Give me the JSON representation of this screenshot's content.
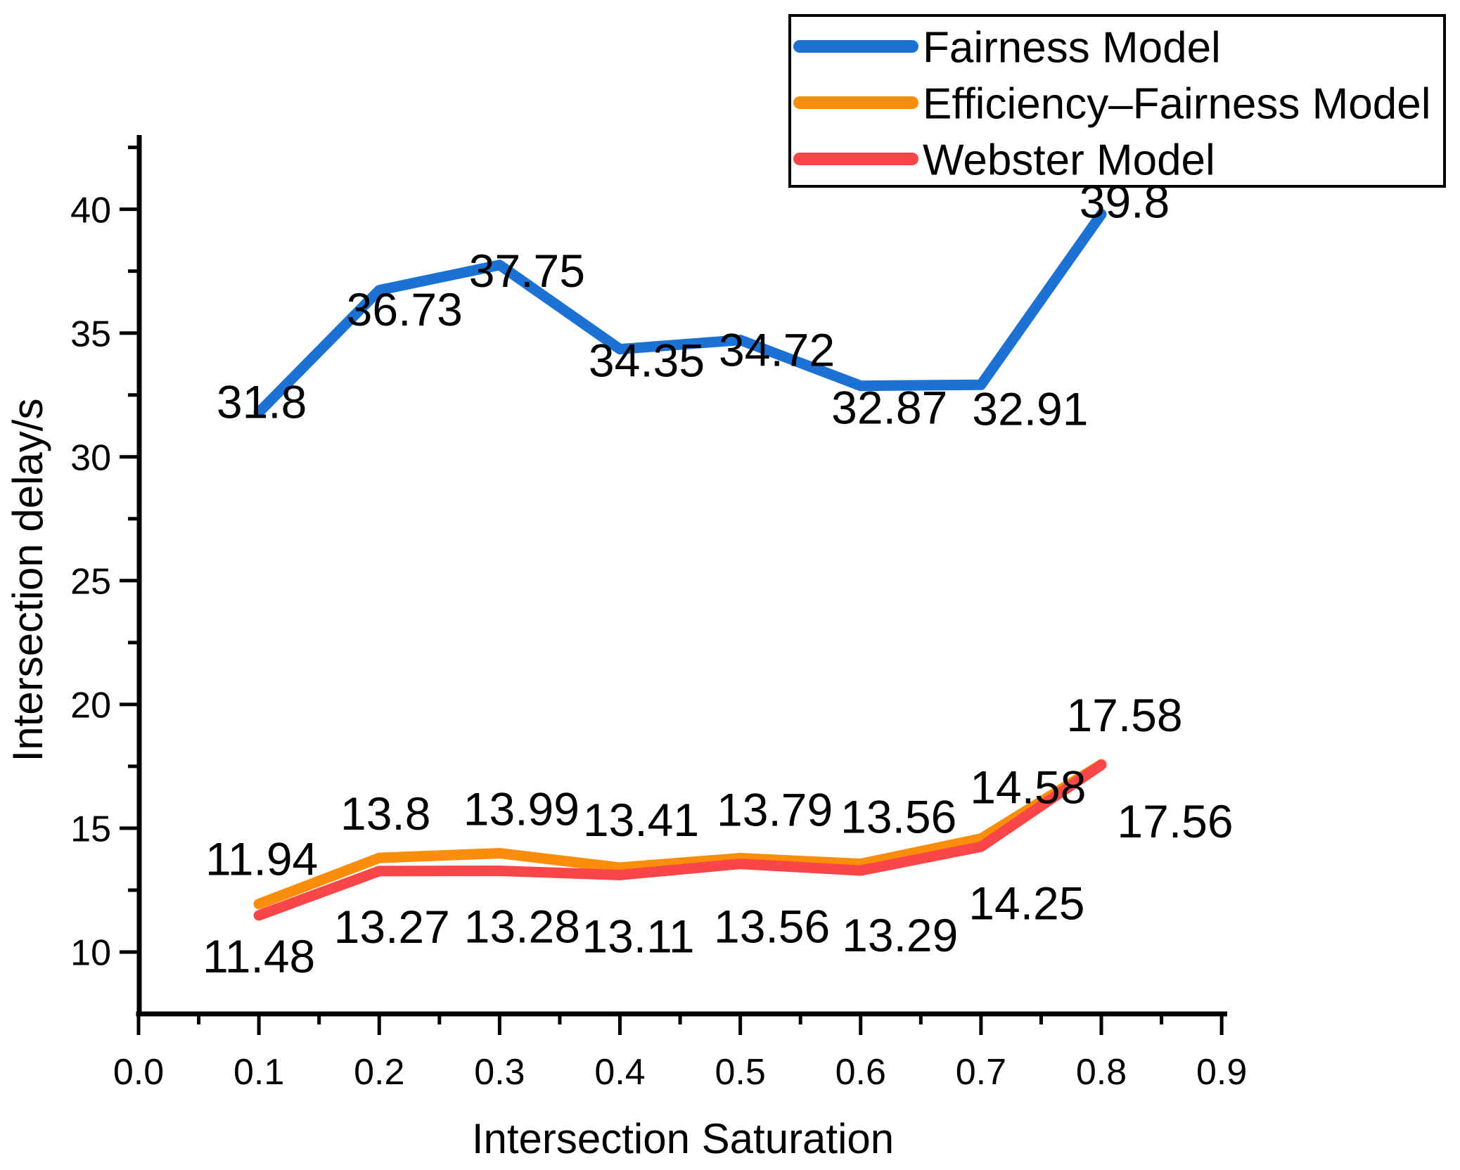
{
  "chart_data": {
    "type": "line",
    "x": [
      0.1,
      0.2,
      0.3,
      0.4,
      0.5,
      0.6,
      0.7,
      0.8
    ],
    "series": [
      {
        "name": "Fairness Model",
        "color": "#1C72D4",
        "values": [
          31.8,
          36.73,
          37.75,
          34.35,
          34.72,
          32.87,
          32.91,
          39.8
        ],
        "point_labels": [
          {
            "text": "31.8",
            "dx": 4,
            "dy": 8
          },
          {
            "text": "36.73",
            "dx": 36,
            "dy": 50
          },
          {
            "text": "37.75",
            "dx": 39,
            "dy": 31
          },
          {
            "text": "34.35",
            "dx": 38,
            "dy": 39
          },
          {
            "text": "34.72",
            "dx": 52,
            "dy": 37
          },
          {
            "text": "32.87",
            "dx": 41,
            "dy": 54
          },
          {
            "text": "32.91",
            "dx": 70,
            "dy": 57
          },
          {
            "text": "39.8",
            "dx": 33,
            "dy": 5
          }
        ]
      },
      {
        "name": "Efficiency–Fairness Model",
        "color": "#FA8E0A",
        "values": [
          11.94,
          13.8,
          13.99,
          13.41,
          13.79,
          13.56,
          14.58,
          17.58
        ],
        "point_labels": [
          {
            "text": "11.94",
            "dx": 4,
            "dy": -41
          },
          {
            "text": "13.8",
            "dx": 9,
            "dy": -40
          },
          {
            "text": "13.99",
            "dx": 31,
            "dy": -40
          },
          {
            "text": "13.41",
            "dx": 30,
            "dy": -45
          },
          {
            "text": "13.79",
            "dx": 49,
            "dy": -46
          },
          {
            "text": "13.56",
            "dx": 54,
            "dy": -44
          },
          {
            "text": "14.58",
            "dx": 67,
            "dy": -50
          },
          {
            "text": "17.58",
            "dx": 33,
            "dy": -47
          }
        ]
      },
      {
        "name": "Webster Model",
        "color": "#FB4649",
        "values": [
          11.48,
          13.27,
          13.28,
          13.11,
          13.56,
          13.29,
          14.25,
          17.56
        ],
        "point_labels": [
          {
            "text": "11.48",
            "dx": 0,
            "dy": 81
          },
          {
            "text": "13.27",
            "dx": 18,
            "dy": 102
          },
          {
            "text": "13.28",
            "dx": 32,
            "dy": 102
          },
          {
            "text": "13.11",
            "dx": 26,
            "dy": 110
          },
          {
            "text": "13.56",
            "dx": 45,
            "dy": 112
          },
          {
            "text": "13.29",
            "dx": 56,
            "dy": 115
          },
          {
            "text": "14.25",
            "dx": 65,
            "dy": 103
          },
          {
            "text": "17.56",
            "dx": 105,
            "dy": 103
          }
        ]
      }
    ],
    "title": "",
    "xlabel": "Intersection Saturation",
    "ylabel": "Intersection delay/s",
    "xlim": [
      0.0,
      0.9046
    ],
    "ylim": [
      7.5,
      43.0
    ],
    "x_major_ticks": [
      0.0,
      0.1,
      0.2,
      0.3,
      0.4,
      0.5,
      0.6,
      0.7,
      0.8,
      0.9
    ],
    "x_major_tick_labels": [
      "0.0",
      "0.1",
      "0.2",
      "0.3",
      "0.4",
      "0.5",
      "0.6",
      "0.7",
      "0.8",
      "0.9"
    ],
    "x_minor_ticks": [
      0.05,
      0.15,
      0.25,
      0.35,
      0.45,
      0.55,
      0.65,
      0.75,
      0.85
    ],
    "y_major_ticks": [
      10,
      15,
      20,
      25,
      30,
      35,
      40
    ],
    "y_major_tick_labels": [
      "10",
      "15",
      "20",
      "25",
      "30",
      "35",
      "40"
    ],
    "y_minor_ticks": [
      12.5,
      17.5,
      22.5,
      27.5,
      32.5,
      37.5,
      42.5
    ],
    "grid": false,
    "axis_color": "#000000",
    "background_color": "#ffffff",
    "legend": {
      "position": "top-right",
      "border_color": "#000000",
      "items": [
        "Fairness Model",
        "Efficiency–Fairness Model",
        "Webster Model"
      ]
    }
  }
}
